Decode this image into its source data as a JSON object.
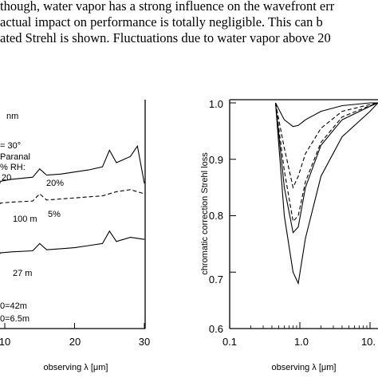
{
  "paragraph": {
    "line1": "though, water vapor has a strong influence on the wavefront err",
    "line2": "actual impact on performance is totally negligible. This can b",
    "line3": "ated Strehl is shown. Fluctuations due to water vapor above 20"
  },
  "chart_data": [
    {
      "type": "line",
      "xlabel": "observing λ [μm]",
      "ylabel": "",
      "xlim": [
        5,
        30
      ],
      "x_ticks": [
        "10",
        "20",
        "30"
      ],
      "annotations": [
        "nm",
        "= 30°",
        "Paranal",
        "% RH:",
        "20",
        "20%",
        "5%",
        "100 m",
        "27 m",
        "0=42m",
        "0=6.5m"
      ],
      "series": [
        {
          "group": "100 m",
          "style": "solid",
          "x": [
            5,
            8,
            11,
            14,
            15,
            16,
            18,
            20,
            22,
            24,
            25,
            26,
            28,
            29,
            30
          ],
          "y": [
            0.7,
            0.71,
            0.72,
            0.73,
            0.77,
            0.74,
            0.745,
            0.755,
            0.765,
            0.78,
            0.86,
            0.8,
            0.83,
            0.88,
            0.7
          ]
        },
        {
          "group": "100 m",
          "style": "dashed",
          "x": [
            5,
            8,
            11,
            14,
            15,
            16,
            18,
            20,
            22,
            24,
            26,
            28,
            30
          ],
          "y": [
            0.6,
            0.605,
            0.61,
            0.615,
            0.65,
            0.62,
            0.625,
            0.63,
            0.635,
            0.64,
            0.66,
            0.67,
            0.65
          ]
        },
        {
          "group": "27 m",
          "style": "solid",
          "x": [
            5,
            8,
            11,
            14,
            15,
            16,
            18,
            20,
            22,
            24,
            25,
            26,
            28,
            30
          ],
          "y": [
            0.36,
            0.365,
            0.37,
            0.375,
            0.41,
            0.38,
            0.385,
            0.39,
            0.4,
            0.41,
            0.47,
            0.42,
            0.44,
            0.43
          ]
        }
      ]
    },
    {
      "type": "line",
      "xlabel": "observing λ [μm]",
      "ylabel": "chromatic correction Strehl loss",
      "xscale": "log",
      "xlim": [
        0.1,
        20
      ],
      "ylim": [
        0.6,
        1.0
      ],
      "x_ticks": [
        "0.1",
        "1.0",
        "10."
      ],
      "y_ticks": [
        "0.6",
        "0.7",
        "0.8",
        "0.9",
        "1.0"
      ],
      "series": [
        {
          "style": "solid",
          "x": [
            0.45,
            0.6,
            0.8,
            0.95,
            1.2,
            2.0,
            4.0,
            10,
            20
          ],
          "y": [
            1.0,
            0.97,
            0.958,
            0.96,
            0.97,
            0.985,
            0.995,
            1.0,
            1.0
          ]
        },
        {
          "style": "dashed",
          "x": [
            0.45,
            0.6,
            0.8,
            0.95,
            1.2,
            2.0,
            4.0,
            10,
            20
          ],
          "y": [
            1.0,
            0.92,
            0.85,
            0.87,
            0.91,
            0.955,
            0.985,
            0.997,
            1.0
          ]
        },
        {
          "style": "dashed",
          "x": [
            0.45,
            0.6,
            0.8,
            0.95,
            1.2,
            2.0,
            4.0,
            10,
            20
          ],
          "y": [
            1.0,
            0.88,
            0.79,
            0.8,
            0.86,
            0.93,
            0.975,
            0.995,
            1.0
          ]
        },
        {
          "style": "solid",
          "x": [
            0.45,
            0.6,
            0.8,
            0.95,
            1.2,
            2.0,
            4.0,
            10,
            20
          ],
          "y": [
            1.0,
            0.85,
            0.77,
            0.78,
            0.85,
            0.925,
            0.97,
            0.994,
            1.0
          ]
        },
        {
          "style": "solid",
          "x": [
            0.45,
            0.6,
            0.8,
            0.95,
            1.2,
            2.0,
            4.0,
            10,
            20
          ],
          "y": [
            1.0,
            0.8,
            0.7,
            0.68,
            0.76,
            0.87,
            0.94,
            0.985,
            1.0
          ]
        }
      ]
    }
  ]
}
